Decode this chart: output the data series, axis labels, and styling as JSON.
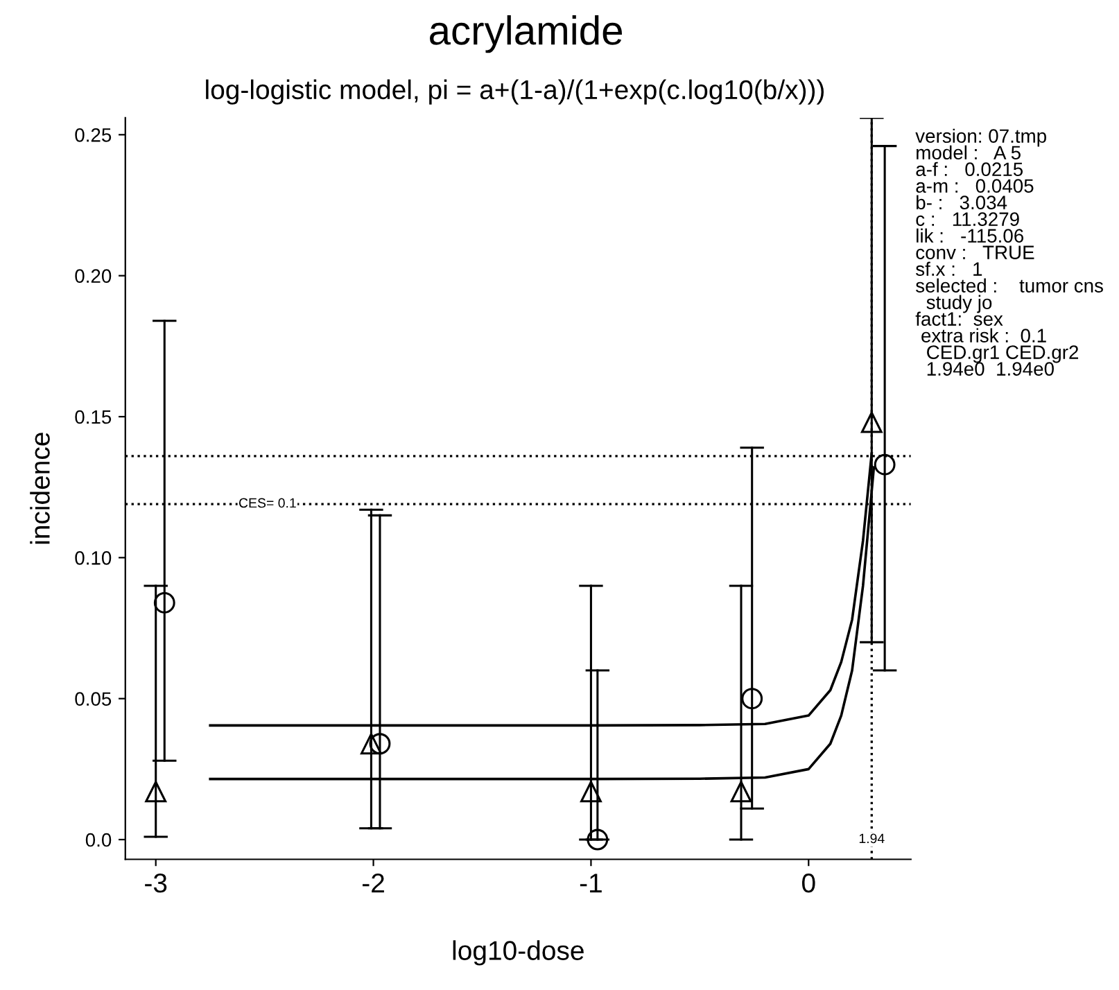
{
  "chart_data": {
    "type": "scatter",
    "title": "acrylamide",
    "subtitle": "log-logistic model, pi = a+(1-a)/(1+exp(c.log10(b/x)))",
    "xlabel": "log10-dose",
    "ylabel": "incidence",
    "xlim": [
      -3.14,
      0.47
    ],
    "xticks": [
      -3,
      -2,
      -1,
      0
    ],
    "ylim": [
      -0.007,
      0.256
    ],
    "yticks": [
      {
        "value": 0,
        "label": "0.0"
      },
      0.05,
      {
        "value": 0.1,
        "label": "0.10"
      },
      0.15,
      {
        "value": 0.2,
        "label": "0.20"
      },
      0.25
    ],
    "grid": false,
    "legend": false,
    "series": [
      {
        "marker": "triangle",
        "color": "#000000",
        "x": [
          -3,
          -2.01,
          -1,
          -0.31,
          0.29
        ],
        "values": [
          0.017,
          0.034,
          0.017,
          0.017,
          0.148
        ],
        "errors": [
          [
            0.001,
            0.09
          ],
          [
            0.004,
            0.117
          ],
          [
            0.0,
            0.09
          ],
          [
            0.0,
            0.09
          ],
          [
            0.07,
            0.256
          ]
        ]
      },
      {
        "marker": "circle",
        "color": "#000000",
        "x": [
          -2.96,
          -1.97,
          -0.97,
          -0.26,
          0.35
        ],
        "values": [
          0.084,
          0.034,
          0.0,
          0.05,
          0.133
        ],
        "errors": [
          [
            0.028,
            0.184
          ],
          [
            0.004,
            0.115
          ],
          [
            0.0,
            0.06
          ],
          [
            0.011,
            0.139
          ],
          [
            0.06,
            0.246
          ]
        ]
      },
      {
        "type": "line",
        "marker": "none",
        "line_style": "solid",
        "color": "#000000",
        "x": [
          -2.75,
          -1,
          -0.5,
          -0.2,
          0,
          0.1,
          0.15,
          0.2,
          0.25,
          0.3
        ],
        "values": [
          0.0215,
          0.0215,
          0.0216,
          0.022,
          0.025,
          0.034,
          0.044,
          0.06,
          0.09,
          0.132
        ]
      },
      {
        "type": "line",
        "marker": "none",
        "line_style": "solid",
        "color": "#000000",
        "x": [
          -2.75,
          -1,
          -0.5,
          -0.2,
          0,
          0.1,
          0.15,
          0.2,
          0.25,
          0.29
        ],
        "values": [
          0.0405,
          0.0405,
          0.0406,
          0.041,
          0.044,
          0.053,
          0.063,
          0.078,
          0.106,
          0.137
        ]
      }
    ],
    "ref_lines": [
      {
        "axis": "y",
        "value": 0.136,
        "label": null,
        "line_style": "dotted",
        "color": "#000000"
      },
      {
        "axis": "y",
        "value": 0.119,
        "label": "CES= 0.1",
        "line_style": "dotted",
        "color": "#000000"
      },
      {
        "axis": "x",
        "value": 0.29,
        "line_style": "dotted",
        "color": "#000000"
      }
    ],
    "annotations": [
      "version: 07.tmp",
      "model :   A 5",
      "a-f :   0.0215",
      "a-m :   0.0405",
      "b- :   3.034",
      "c :   11.3279",
      "lik :   -115.06",
      "conv :   TRUE",
      "sf.x :   1",
      "selected :    tumor cns",
      "  study jo",
      "fact1:  sex",
      " extra risk :  0.1",
      "  CED.gr1 CED.gr2",
      "  1.94e0  1.94e0",
      {
        "text": "1.94",
        "x": 0.29,
        "y": 0.0
      }
    ]
  }
}
